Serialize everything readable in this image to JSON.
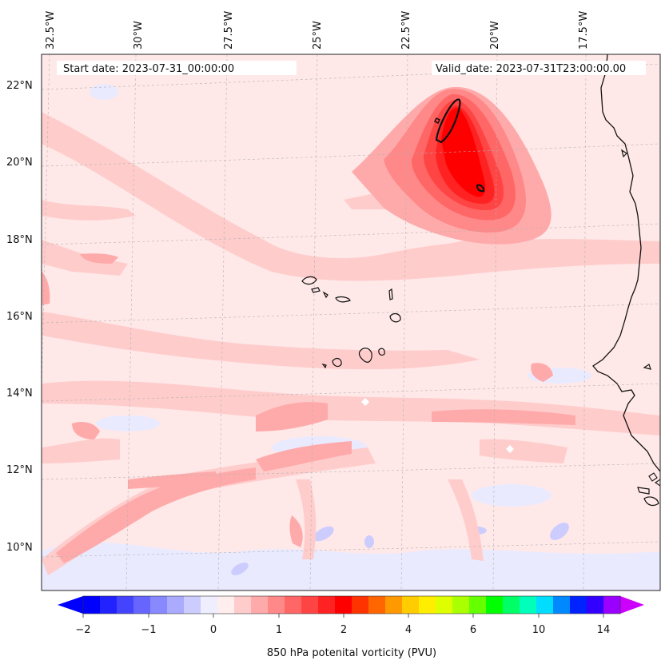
{
  "header": {
    "start_date": "Start date: 2023-07-31_00:00:00",
    "valid_date": "Valid_date: 2023-07-31T23:00:00.00"
  },
  "axes": {
    "lon_labels": [
      "32.5°W",
      "30°W",
      "27.5°W",
      "25°W",
      "22.5°W",
      "20°W",
      "17.5°W"
    ],
    "lat_labels": [
      "22°N",
      "20°N",
      "18°N",
      "16°N",
      "14°N",
      "12°N",
      "10°N"
    ],
    "gridlines": true
  },
  "colorbar": {
    "title": "850 hPa potenital vorticity (PVU)",
    "tick_labels": [
      "−2",
      "−1",
      "0",
      "1",
      "2",
      "4",
      "6",
      "10",
      "14"
    ],
    "colors": [
      "#0000ff",
      "#2222ff",
      "#4444ff",
      "#6666ff",
      "#8888ff",
      "#aaaaff",
      "#ccccff",
      "#eeeeff",
      "#ffeeee",
      "#ffcccc",
      "#ffaaaa",
      "#ff8888",
      "#ff6666",
      "#ff4444",
      "#ff2222",
      "#ff0000",
      "#ff3300",
      "#ff6600",
      "#ff9900",
      "#ffcc00",
      "#ffee00",
      "#ddff00",
      "#aaff00",
      "#66ff00",
      "#00ff00",
      "#00ff66",
      "#00ffbb",
      "#00ddff",
      "#0088ff",
      "#0022ff",
      "#3300ff",
      "#9900ff"
    ],
    "extend_low": "#0000ff",
    "extend_high": "#cc00ff"
  },
  "field": {
    "variable": "850 hPa potential vorticity",
    "background_color": "#ffe8e8",
    "max_region": "Northeast of Cape Verde near 20°N, 21°W",
    "contour_color": "#111111"
  }
}
